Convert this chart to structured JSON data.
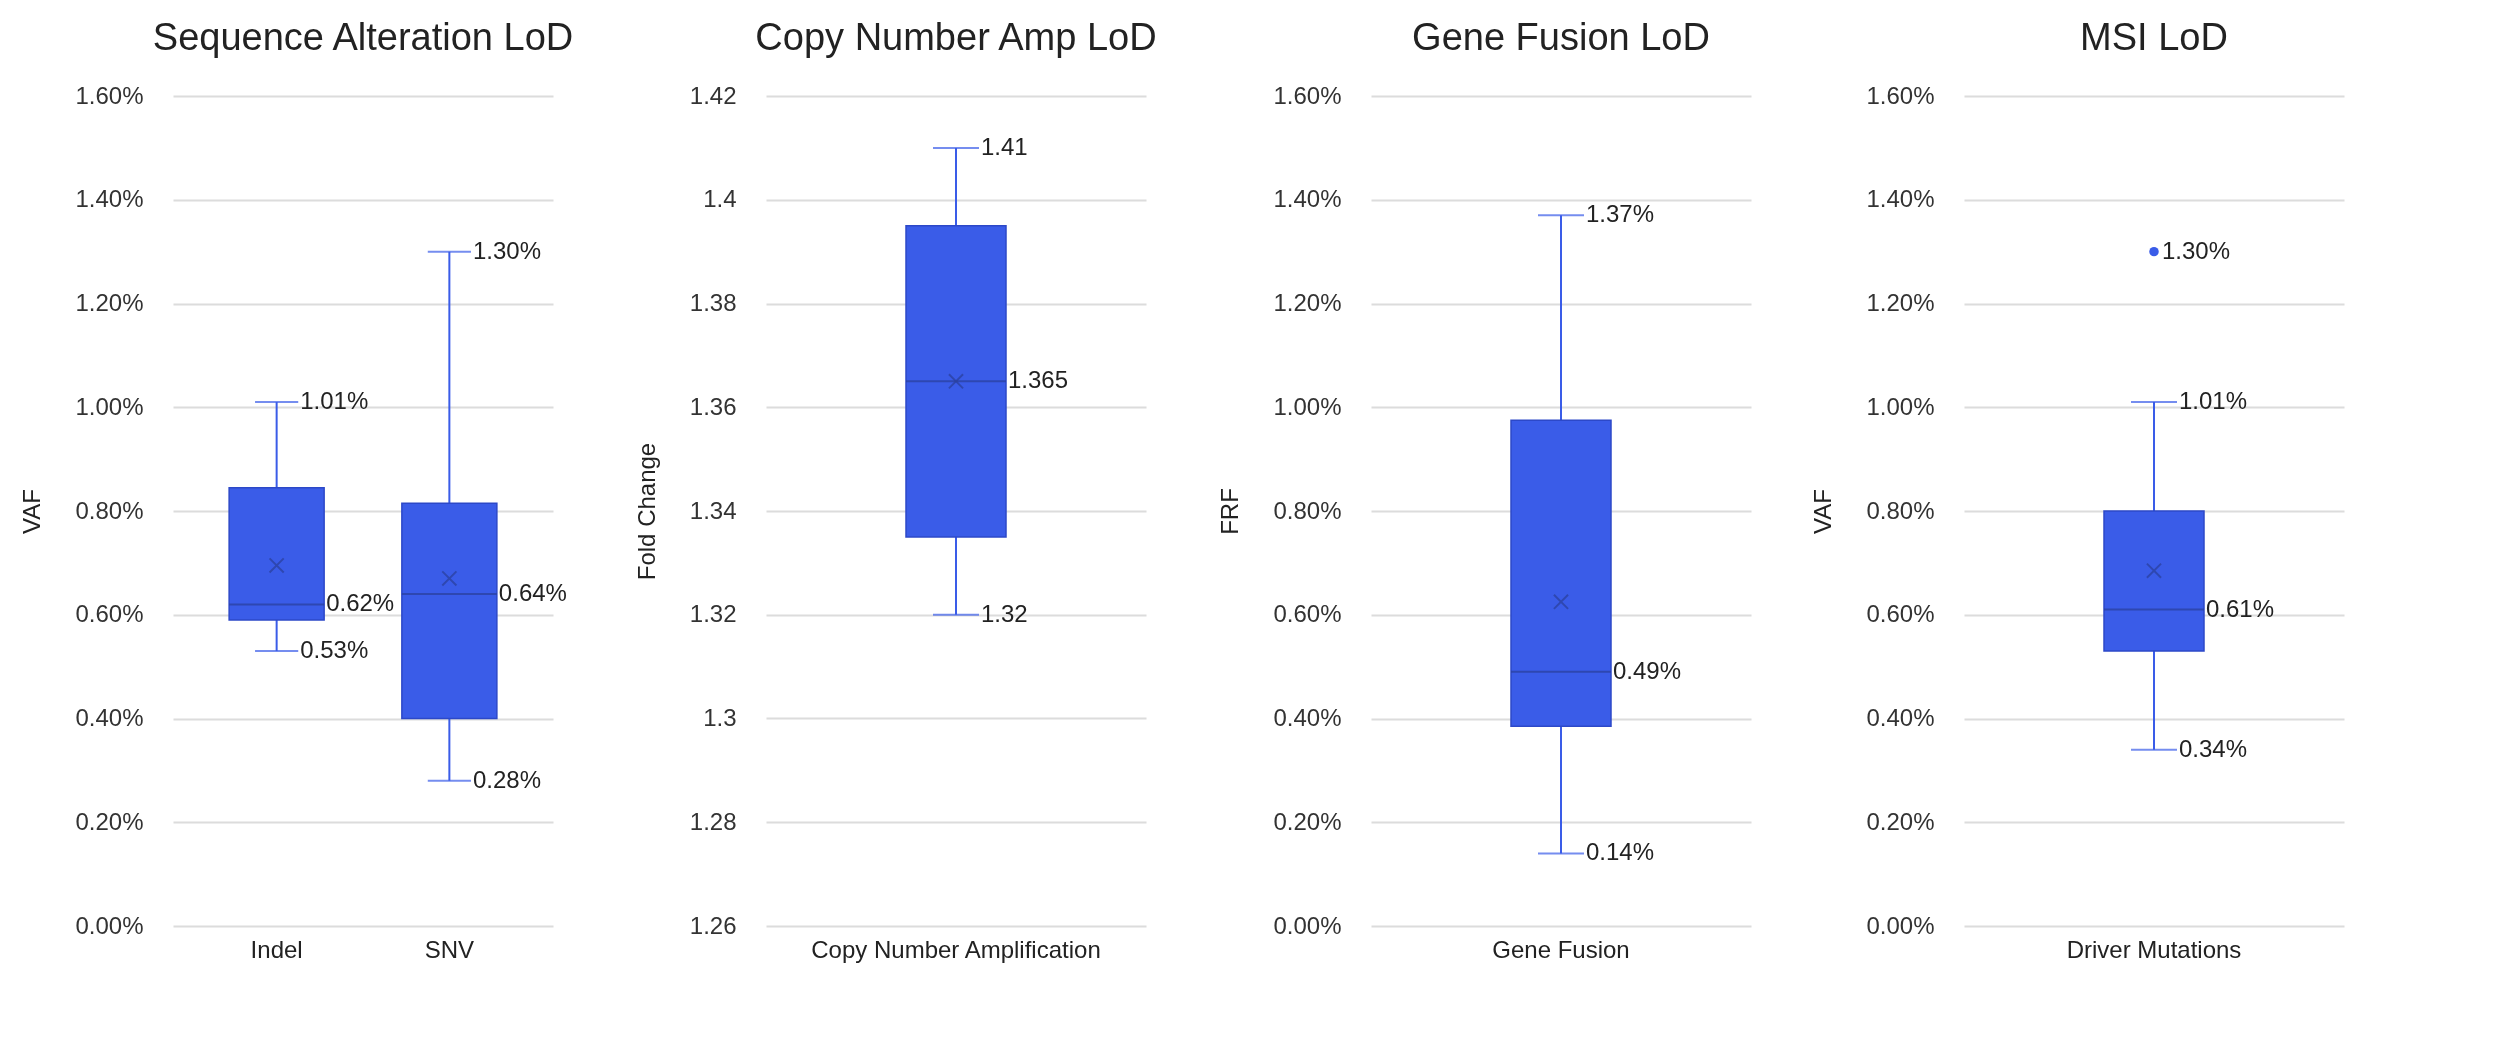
{
  "chart_data": [
    {
      "type": "box",
      "title": "Sequence Alteration LoD",
      "ylabel": "VAF",
      "categories": [
        "Indel",
        "SNV"
      ],
      "color": "#3a5ce8",
      "grid": "y",
      "boxes": [
        {
          "low": 0.53,
          "q1": 0.59,
          "median": 0.62,
          "q3": 0.845,
          "high": 1.01,
          "mean": 0.695
        },
        {
          "low": 0.28,
          "q1": 0.4,
          "median": 0.64,
          "q3": 0.815,
          "high": 1.3,
          "mean": 0.67
        }
      ],
      "ylim": [
        0,
        1.6
      ],
      "yticks": [
        {
          "value": 0,
          "label": "0.00%"
        },
        {
          "value": 0.2,
          "label": "0.20%"
        },
        {
          "value": 0.4,
          "label": "0.40%"
        },
        {
          "value": 0.6,
          "label": "0.60%"
        },
        {
          "value": 0.8,
          "label": "0.80%"
        },
        {
          "value": 1,
          "label": "1.00%"
        },
        {
          "value": 1.2,
          "label": "1.20%"
        },
        {
          "value": 1.4,
          "label": "1.40%"
        },
        {
          "value": 1.6,
          "label": "1.60%"
        }
      ],
      "annotations": [
        {
          "text": "1.01%",
          "x": "Indel",
          "y": 1.01
        },
        {
          "text": "0.62%",
          "x": "Indel",
          "y": 0.62
        },
        {
          "text": "0.53%",
          "x": "Indel",
          "y": 0.53
        },
        {
          "text": "1.30%",
          "x": "SNV",
          "y": 1.3
        },
        {
          "text": "0.64%",
          "x": "SNV",
          "y": 0.64
        },
        {
          "text": "0.28%",
          "x": "SNV",
          "y": 0.28
        }
      ]
    },
    {
      "type": "box",
      "title": "Copy Number Amp LoD",
      "ylabel": "Fold Change",
      "categories": [
        "Copy Number Amplification"
      ],
      "color": "#3a5ce8",
      "grid": "y",
      "boxes": [
        {
          "low": 1.32,
          "q1": 1.335,
          "median": 1.365,
          "q3": 1.395,
          "high": 1.41,
          "mean": 1.365
        }
      ],
      "ylim": [
        1.26,
        1.42
      ],
      "yticks": [
        1.26,
        1.28,
        1.3,
        1.32,
        1.34,
        1.36,
        1.38,
        1.4,
        1.42
      ],
      "annotations": [
        {
          "text": "1.41",
          "x": "Copy Number Amplification",
          "y": 1.41
        },
        {
          "text": "1.365",
          "x": "Copy Number Amplification",
          "y": 1.365
        },
        {
          "text": "1.32",
          "x": "Copy Number Amplification",
          "y": 1.32
        }
      ]
    },
    {
      "type": "box",
      "title": "Gene Fusion LoD",
      "ylabel": "FRF",
      "categories": [
        "Gene Fusion"
      ],
      "color": "#3a5ce8",
      "grid": "y",
      "boxes": [
        {
          "low": 0.14,
          "q1": 0.385,
          "median": 0.49,
          "q3": 0.975,
          "high": 1.37,
          "mean": 0.625
        }
      ],
      "ylim": [
        0,
        1.6
      ],
      "yticks": [
        {
          "value": 0,
          "label": "0.00%"
        },
        {
          "value": 0.2,
          "label": "0.20%"
        },
        {
          "value": 0.4,
          "label": "0.40%"
        },
        {
          "value": 0.6,
          "label": "0.60%"
        },
        {
          "value": 0.8,
          "label": "0.80%"
        },
        {
          "value": 1,
          "label": "1.00%"
        },
        {
          "value": 1.2,
          "label": "1.20%"
        },
        {
          "value": 1.4,
          "label": "1.40%"
        },
        {
          "value": 1.6,
          "label": "1.60%"
        }
      ],
      "annotations": [
        {
          "text": "1.37%",
          "x": "Gene Fusion",
          "y": 1.37
        },
        {
          "text": "0.49%",
          "x": "Gene Fusion",
          "y": 0.49
        },
        {
          "text": "0.14%",
          "x": "Gene Fusion",
          "y": 0.14
        }
      ]
    },
    {
      "type": "box",
      "title": "MSI LoD",
      "ylabel": "VAF",
      "categories": [
        "Driver Mutations"
      ],
      "color": "#3a5ce8",
      "grid": "y",
      "boxes": [
        {
          "low": 0.34,
          "q1": 0.53,
          "median": 0.61,
          "q3": 0.8,
          "high": 1.01,
          "mean": 0.685,
          "outliers": [
            1.3
          ]
        }
      ],
      "ylim": [
        0,
        1.6
      ],
      "yticks": [
        {
          "value": 0,
          "label": "0.00%"
        },
        {
          "value": 0.2,
          "label": "0.20%"
        },
        {
          "value": 0.4,
          "label": "0.40%"
        },
        {
          "value": 0.6,
          "label": "0.60%"
        },
        {
          "value": 0.8,
          "label": "0.80%"
        },
        {
          "value": 1,
          "label": "1.00%"
        },
        {
          "value": 1.2,
          "label": "1.20%"
        },
        {
          "value": 1.4,
          "label": "1.40%"
        },
        {
          "value": 1.6,
          "label": "1.60%"
        }
      ],
      "annotations": [
        "1.30%",
        {
          "text": "1.01%",
          "x": "Driver Mutations",
          "y": 1.01
        },
        {
          "text": "0.61%",
          "x": "Driver Mutations",
          "y": 0.61
        },
        {
          "text": "0.34%",
          "x": "Driver Mutations",
          "y": 0.34
        }
      ]
    }
  ]
}
